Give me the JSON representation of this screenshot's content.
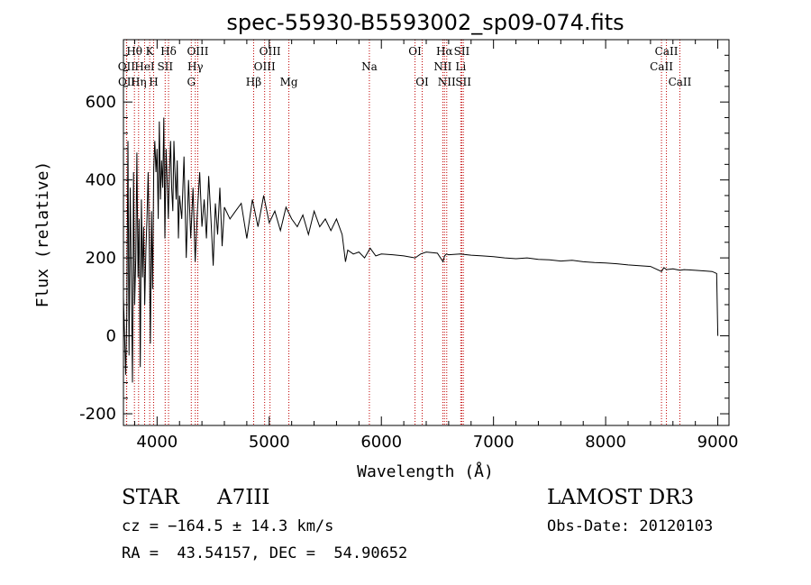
{
  "chart_data": {
    "type": "line",
    "title": "spec-55930-B5593002_sp09-074.fits",
    "xlabel": "Wavelength (Å)",
    "ylabel": "Flux (relative)",
    "xlim": [
      3700,
      9100
    ],
    "ylim": [
      -230,
      760
    ],
    "xticks": [
      4000,
      5000,
      6000,
      7000,
      8000,
      9000
    ],
    "yticks": [
      -200,
      0,
      200,
      400,
      600
    ],
    "series": [
      {
        "name": "flux",
        "x": [
          3700,
          3720,
          3730,
          3740,
          3750,
          3760,
          3770,
          3780,
          3790,
          3800,
          3810,
          3820,
          3830,
          3840,
          3850,
          3860,
          3870,
          3880,
          3890,
          3900,
          3910,
          3920,
          3930,
          3940,
          3950,
          3960,
          3970,
          3980,
          3990,
          4000,
          4010,
          4020,
          4030,
          4040,
          4050,
          4060,
          4070,
          4080,
          4090,
          4100,
          4110,
          4120,
          4130,
          4140,
          4150,
          4160,
          4170,
          4180,
          4190,
          4200,
          4220,
          4240,
          4260,
          4280,
          4300,
          4320,
          4340,
          4360,
          4380,
          4400,
          4420,
          4440,
          4460,
          4480,
          4500,
          4520,
          4540,
          4560,
          4580,
          4600,
          4650,
          4700,
          4750,
          4800,
          4850,
          4900,
          4950,
          5000,
          5050,
          5100,
          5150,
          5200,
          5250,
          5300,
          5350,
          5400,
          5450,
          5500,
          5550,
          5600,
          5650,
          5680,
          5700,
          5750,
          5800,
          5850,
          5900,
          5950,
          6000,
          6100,
          6200,
          6300,
          6350,
          6400,
          6500,
          6550,
          6563,
          6580,
          6600,
          6700,
          6800,
          6900,
          7000,
          7100,
          7200,
          7300,
          7400,
          7500,
          7600,
          7700,
          7800,
          7900,
          8000,
          8100,
          8200,
          8300,
          8400,
          8498,
          8520,
          8542,
          8600,
          8662,
          8700,
          8800,
          8900,
          8950,
          8990,
          9000
        ],
        "y": [
          100,
          -100,
          50,
          500,
          -50,
          380,
          150,
          -120,
          420,
          80,
          200,
          470,
          150,
          300,
          -80,
          350,
          150,
          280,
          80,
          220,
          300,
          420,
          240,
          -20,
          320,
          120,
          430,
          500,
          420,
          480,
          300,
          550,
          350,
          450,
          380,
          560,
          250,
          480,
          400,
          300,
          420,
          500,
          380,
          320,
          500,
          420,
          350,
          450,
          250,
          360,
          300,
          460,
          200,
          400,
          250,
          380,
          190,
          320,
          420,
          280,
          350,
          250,
          410,
          300,
          180,
          340,
          260,
          380,
          230,
          330,
          300,
          320,
          340,
          250,
          350,
          280,
          360,
          290,
          320,
          270,
          330,
          300,
          280,
          310,
          260,
          320,
          280,
          300,
          270,
          300,
          260,
          190,
          220,
          210,
          215,
          200,
          225,
          205,
          210,
          208,
          205,
          200,
          210,
          215,
          212,
          190,
          205,
          210,
          208,
          210,
          207,
          205,
          203,
          200,
          198,
          200,
          196,
          195,
          192,
          194,
          190,
          188,
          187,
          185,
          182,
          180,
          178,
          165,
          175,
          170,
          172,
          168,
          170,
          168,
          166,
          165,
          160,
          0
        ]
      }
    ],
    "lines": [
      {
        "label": "Hθ",
        "wl": 3798,
        "row": 1
      },
      {
        "label": "OII",
        "wl": 3727,
        "row": 2
      },
      {
        "label": "OII",
        "wl": 3729,
        "row": 3
      },
      {
        "label": "K",
        "wl": 3934,
        "row": 1
      },
      {
        "label": "H",
        "wl": 3969,
        "row": 3
      },
      {
        "label": "Hη",
        "wl": 3835,
        "row": 3
      },
      {
        "label": "HeI",
        "wl": 3889,
        "row": 2
      },
      {
        "label": "SII",
        "wl": 4072,
        "row": 2
      },
      {
        "label": "Hδ",
        "wl": 4102,
        "row": 1
      },
      {
        "label": "OIII",
        "wl": 4363,
        "row": 1
      },
      {
        "label": "Hγ",
        "wl": 4341,
        "row": 2
      },
      {
        "label": "G",
        "wl": 4305,
        "row": 3
      },
      {
        "label": "Hβ",
        "wl": 4861,
        "row": 3
      },
      {
        "label": "OIII",
        "wl": 4959,
        "row": 2
      },
      {
        "label": "OIII",
        "wl": 5007,
        "row": 1
      },
      {
        "label": "Mg",
        "wl": 5175,
        "row": 3
      },
      {
        "label": "Na",
        "wl": 5893,
        "row": 2
      },
      {
        "label": "OI",
        "wl": 6300,
        "row": 1
      },
      {
        "label": "OI",
        "wl": 6364,
        "row": 3
      },
      {
        "label": "Hα",
        "wl": 6563,
        "row": 1
      },
      {
        "label": "NII",
        "wl": 6548,
        "row": 2
      },
      {
        "label": "NII",
        "wl": 6583,
        "row": 3
      },
      {
        "label": "SII",
        "wl": 6717,
        "row": 1
      },
      {
        "label": "Li",
        "wl": 6708,
        "row": 2
      },
      {
        "label": "SII",
        "wl": 6731,
        "row": 3
      },
      {
        "label": "CaII",
        "wl": 8662,
        "row": 3
      },
      {
        "label": "CaII",
        "wl": 8542,
        "row": 1
      },
      {
        "label": "CaII",
        "wl": 8498,
        "row": 2
      }
    ]
  },
  "info": {
    "object_class": "STAR",
    "subclass": "A7III",
    "survey": "LAMOST DR3",
    "cz": "cz = −164.5 ± 14.3 km/s",
    "obs_date": "Obs-Date: 20120103",
    "coords": "RA =  43.54157, DEC =  54.90652"
  }
}
